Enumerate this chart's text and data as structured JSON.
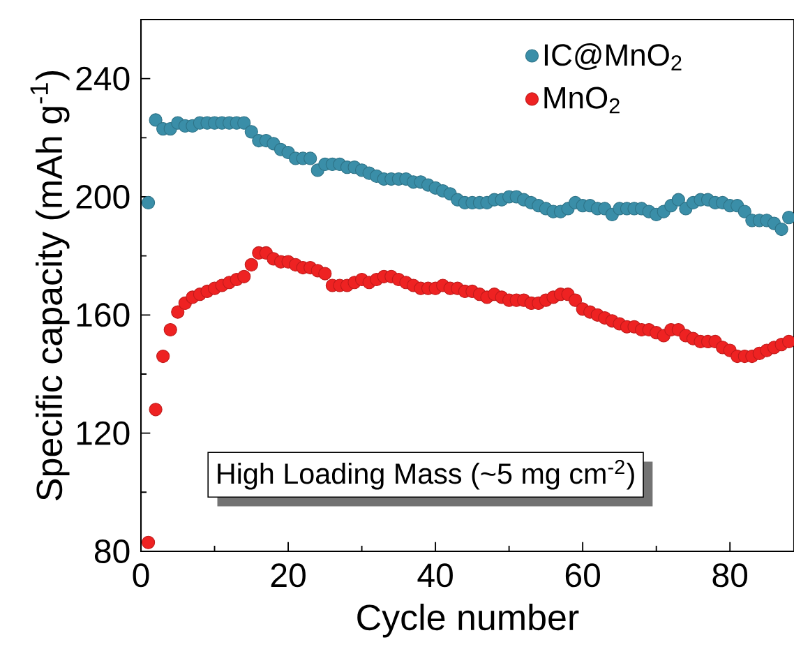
{
  "chart_data": {
    "type": "scatter",
    "xlabel": "Cycle number",
    "ylabel": "Specific capacity (mAh g$^{-1}$)",
    "annotations": [
      "High Loading Mass (~5 mg cm$^{-2}$)"
    ],
    "x": [
      1,
      2,
      3,
      4,
      5,
      6,
      7,
      8,
      9,
      10,
      11,
      12,
      13,
      14,
      15,
      16,
      17,
      18,
      19,
      20,
      21,
      22,
      23,
      24,
      25,
      26,
      27,
      28,
      29,
      30,
      31,
      32,
      33,
      34,
      35,
      36,
      37,
      38,
      39,
      40,
      41,
      42,
      43,
      44,
      45,
      46,
      47,
      48,
      49,
      50,
      51,
      52,
      53,
      54,
      55,
      56,
      57,
      58,
      59,
      60,
      61,
      62,
      63,
      64,
      65,
      66,
      67,
      68,
      69,
      70,
      71,
      72,
      73,
      74,
      75,
      76,
      77,
      78,
      79,
      80,
      81,
      82,
      83,
      84,
      85,
      86,
      87,
      88
    ],
    "series": [
      {
        "name": "IC@MnO$_{2}$",
        "color": "#3a8ea8",
        "values": [
          198,
          226,
          223,
          223,
          225,
          224,
          224,
          225,
          225,
          225,
          225,
          225,
          225,
          225,
          222,
          219,
          219,
          218,
          216,
          215,
          213,
          213,
          213,
          209,
          211,
          211,
          211,
          210,
          210,
          209,
          208,
          207,
          206,
          206,
          206,
          206,
          205,
          205,
          204,
          203,
          202,
          201,
          199,
          198,
          198,
          198,
          198,
          199,
          199,
          200,
          200,
          199,
          198,
          197,
          196,
          195,
          195,
          196,
          198,
          197,
          197,
          196,
          196,
          194,
          196,
          196,
          196,
          196,
          195,
          194,
          195,
          197,
          199,
          196,
          198,
          199,
          199,
          198,
          198,
          197,
          197,
          195,
          192,
          192,
          192,
          191,
          189,
          193
        ]
      },
      {
        "name": "MnO$_{2}$",
        "color": "#ee2222",
        "values": [
          83,
          128,
          146,
          155,
          161,
          164,
          166,
          167,
          168,
          169,
          170,
          171,
          172,
          173,
          177,
          181,
          181,
          179,
          178,
          178,
          177,
          176,
          176,
          175,
          174,
          170,
          170,
          170,
          171,
          172,
          171,
          172,
          173,
          173,
          172,
          171,
          170,
          169,
          169,
          169,
          170,
          169,
          169,
          168,
          168,
          167,
          166,
          167,
          166,
          165,
          165,
          165,
          164,
          164,
          165,
          166,
          167,
          167,
          165,
          162,
          161,
          160,
          159,
          158,
          157,
          156,
          156,
          155,
          155,
          154,
          153,
          155,
          155,
          153,
          152,
          151,
          151,
          151,
          149,
          148,
          146,
          146,
          146,
          147,
          148,
          149,
          150,
          151
        ]
      }
    ],
    "xlim": [
      0,
      88.7
    ],
    "ylim": [
      80,
      260
    ],
    "xticks": [
      0,
      20,
      40,
      60,
      80
    ],
    "yticks": [
      80,
      120,
      160,
      200,
      240
    ],
    "marker": "circle",
    "legend": "top right",
    "grid": false
  }
}
